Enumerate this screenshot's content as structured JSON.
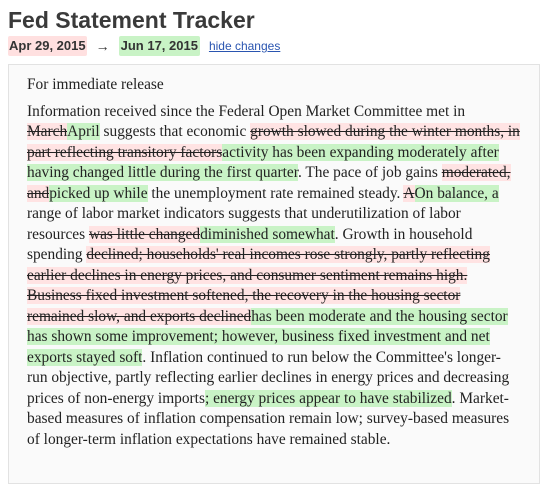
{
  "header": {
    "title": "Fed Statement Tracker",
    "old_date": "Apr 29, 2015",
    "arrow": "→",
    "new_date": "Jun 17, 2015",
    "toggle_label": "hide changes"
  },
  "statement": {
    "release": "For immediate release",
    "segments": [
      {
        "type": "same",
        "text": "Information received since the Federal Open Market Committee met in "
      },
      {
        "type": "del",
        "text": "March"
      },
      {
        "type": "ins",
        "text": "April"
      },
      {
        "type": "same",
        "text": " suggests that economic "
      },
      {
        "type": "del",
        "text": "growth slowed during the winter months, in part reflecting transitory factors"
      },
      {
        "type": "ins",
        "text": "activity has been expanding moderately after having changed little during the first quarter"
      },
      {
        "type": "same",
        "text": ". The pace of job gains "
      },
      {
        "type": "del",
        "text": "moderated, and"
      },
      {
        "type": "ins",
        "text": "picked up while"
      },
      {
        "type": "same",
        "text": " the unemployment rate remained steady. "
      },
      {
        "type": "del",
        "text": "A"
      },
      {
        "type": "ins",
        "text": "On balance, a"
      },
      {
        "type": "same",
        "text": " range of labor market indicators suggests that underutilization of labor resources "
      },
      {
        "type": "del",
        "text": "was little changed"
      },
      {
        "type": "ins",
        "text": "diminished somewhat"
      },
      {
        "type": "same",
        "text": ". Growth in household spending "
      },
      {
        "type": "del",
        "text": "declined; households' real incomes rose strongly, partly reflecting earlier declines in energy prices, and consumer sentiment remains high. Business fixed investment softened, the recovery in the housing sector remained slow, and exports declined"
      },
      {
        "type": "ins",
        "text": "has been moderate and the housing sector has shown some improvement; however, business fixed investment and net exports stayed soft"
      },
      {
        "type": "same",
        "text": ". Inflation continued to run below the Committee's longer-run objective, partly reflecting earlier declines in energy prices and decreasing prices of non-energy imports"
      },
      {
        "type": "ins",
        "text": "; energy prices appear to have stabilized"
      },
      {
        "type": "same",
        "text": ". Market-based measures of inflation compensation remain low; survey-based measures of longer-term inflation expectations have remained stable."
      }
    ]
  }
}
